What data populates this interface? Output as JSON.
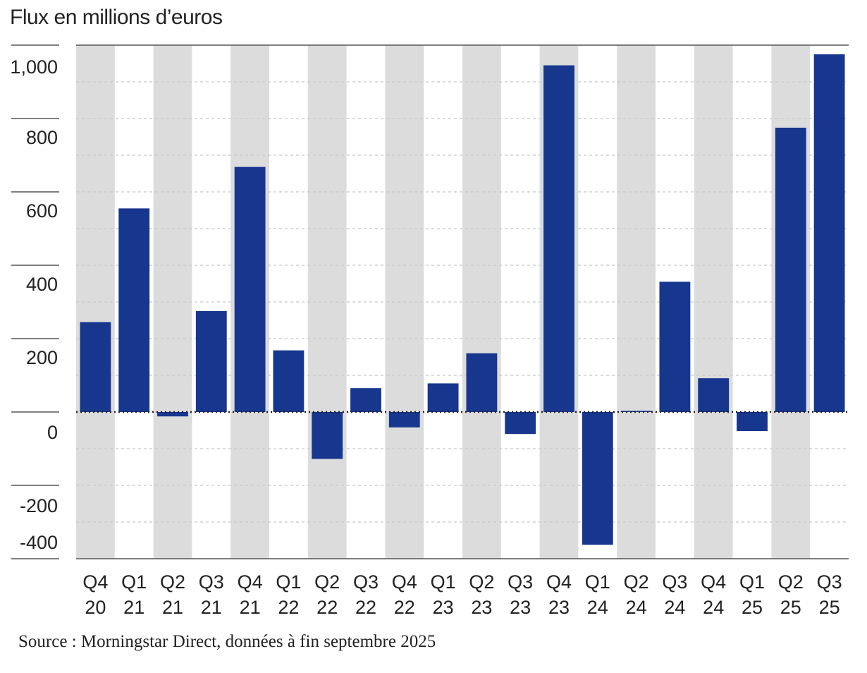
{
  "subtitle": "Flux en millions d’euros",
  "source": "Source : Morningstar Direct, données à fin septembre 2025",
  "colors": {
    "bar": "#17368E",
    "band": "#DCDCDC",
    "grid": "#C8C8C8",
    "axis": "#555555",
    "zero_line": "#222222"
  },
  "chart_data": {
    "type": "bar",
    "title": "",
    "subtitle": "Flux en millions d’euros",
    "xlabel": "",
    "ylabel": "Flux en millions d’euros",
    "ylim": [
      -400,
      1000
    ],
    "y_ticks": [
      {
        "value": 1000,
        "label": "1,000"
      },
      {
        "value": 800,
        "label": "800"
      },
      {
        "value": 600,
        "label": "600"
      },
      {
        "value": 400,
        "label": "400"
      },
      {
        "value": 200,
        "label": "200"
      },
      {
        "value": 0,
        "label": "0"
      },
      {
        "value": -200,
        "label": "-200"
      },
      {
        "value": -400,
        "label": "-400"
      }
    ],
    "grid": true,
    "categories": [
      {
        "quarter": "Q4",
        "year": "20"
      },
      {
        "quarter": "Q1",
        "year": "21"
      },
      {
        "quarter": "Q2",
        "year": "21"
      },
      {
        "quarter": "Q3",
        "year": "21"
      },
      {
        "quarter": "Q4",
        "year": "21"
      },
      {
        "quarter": "Q1",
        "year": "22"
      },
      {
        "quarter": "Q2",
        "year": "22"
      },
      {
        "quarter": "Q3",
        "year": "22"
      },
      {
        "quarter": "Q4",
        "year": "22"
      },
      {
        "quarter": "Q1",
        "year": "23"
      },
      {
        "quarter": "Q2",
        "year": "23"
      },
      {
        "quarter": "Q3",
        "year": "23"
      },
      {
        "quarter": "Q4",
        "year": "23"
      },
      {
        "quarter": "Q1",
        "year": "24"
      },
      {
        "quarter": "Q2",
        "year": "24"
      },
      {
        "quarter": "Q3",
        "year": "24"
      },
      {
        "quarter": "Q4",
        "year": "24"
      },
      {
        "quarter": "Q1",
        "year": "25"
      },
      {
        "quarter": "Q2",
        "year": "25"
      },
      {
        "quarter": "Q3",
        "year": "25"
      }
    ],
    "values": [
      245,
      555,
      -12,
      275,
      668,
      168,
      -128,
      65,
      -42,
      78,
      160,
      -60,
      945,
      -362,
      3,
      355,
      92,
      -52,
      775,
      975
    ]
  }
}
